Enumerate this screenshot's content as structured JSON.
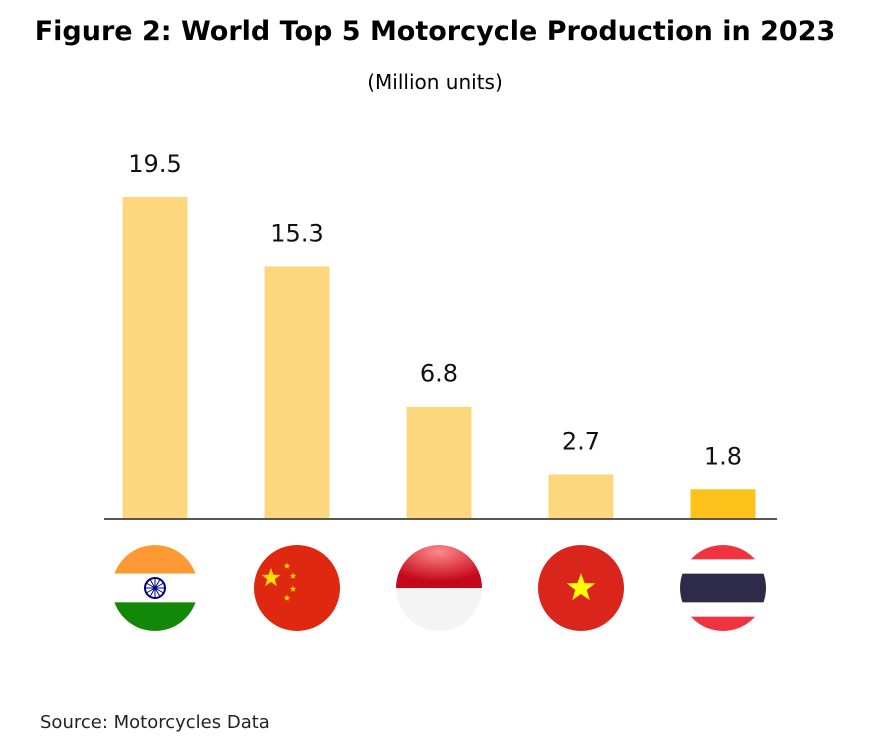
{
  "chart_data": {
    "type": "bar",
    "title": "Figure 2: World Top 5 Motorcycle Production in 2023",
    "subtitle": "(Million units)",
    "categories_flag_icons": [
      "india-flag-icon",
      "china-flag-icon",
      "indonesia-flag-icon",
      "vietnam-flag-icon",
      "thailand-flag-icon"
    ],
    "values": [
      19.5,
      15.3,
      6.8,
      2.7,
      1.8
    ],
    "data_labels": [
      "19.5",
      "15.3",
      "6.8",
      "2.7",
      "1.8"
    ],
    "bar_colors": [
      "#FDD77E",
      "#FDD77E",
      "#FDD77E",
      "#FDD77E",
      "#FEC21C"
    ],
    "ylim": [
      0,
      19.5
    ],
    "grid": false,
    "legend": "none"
  },
  "source": "Source: Motorcycles Data"
}
